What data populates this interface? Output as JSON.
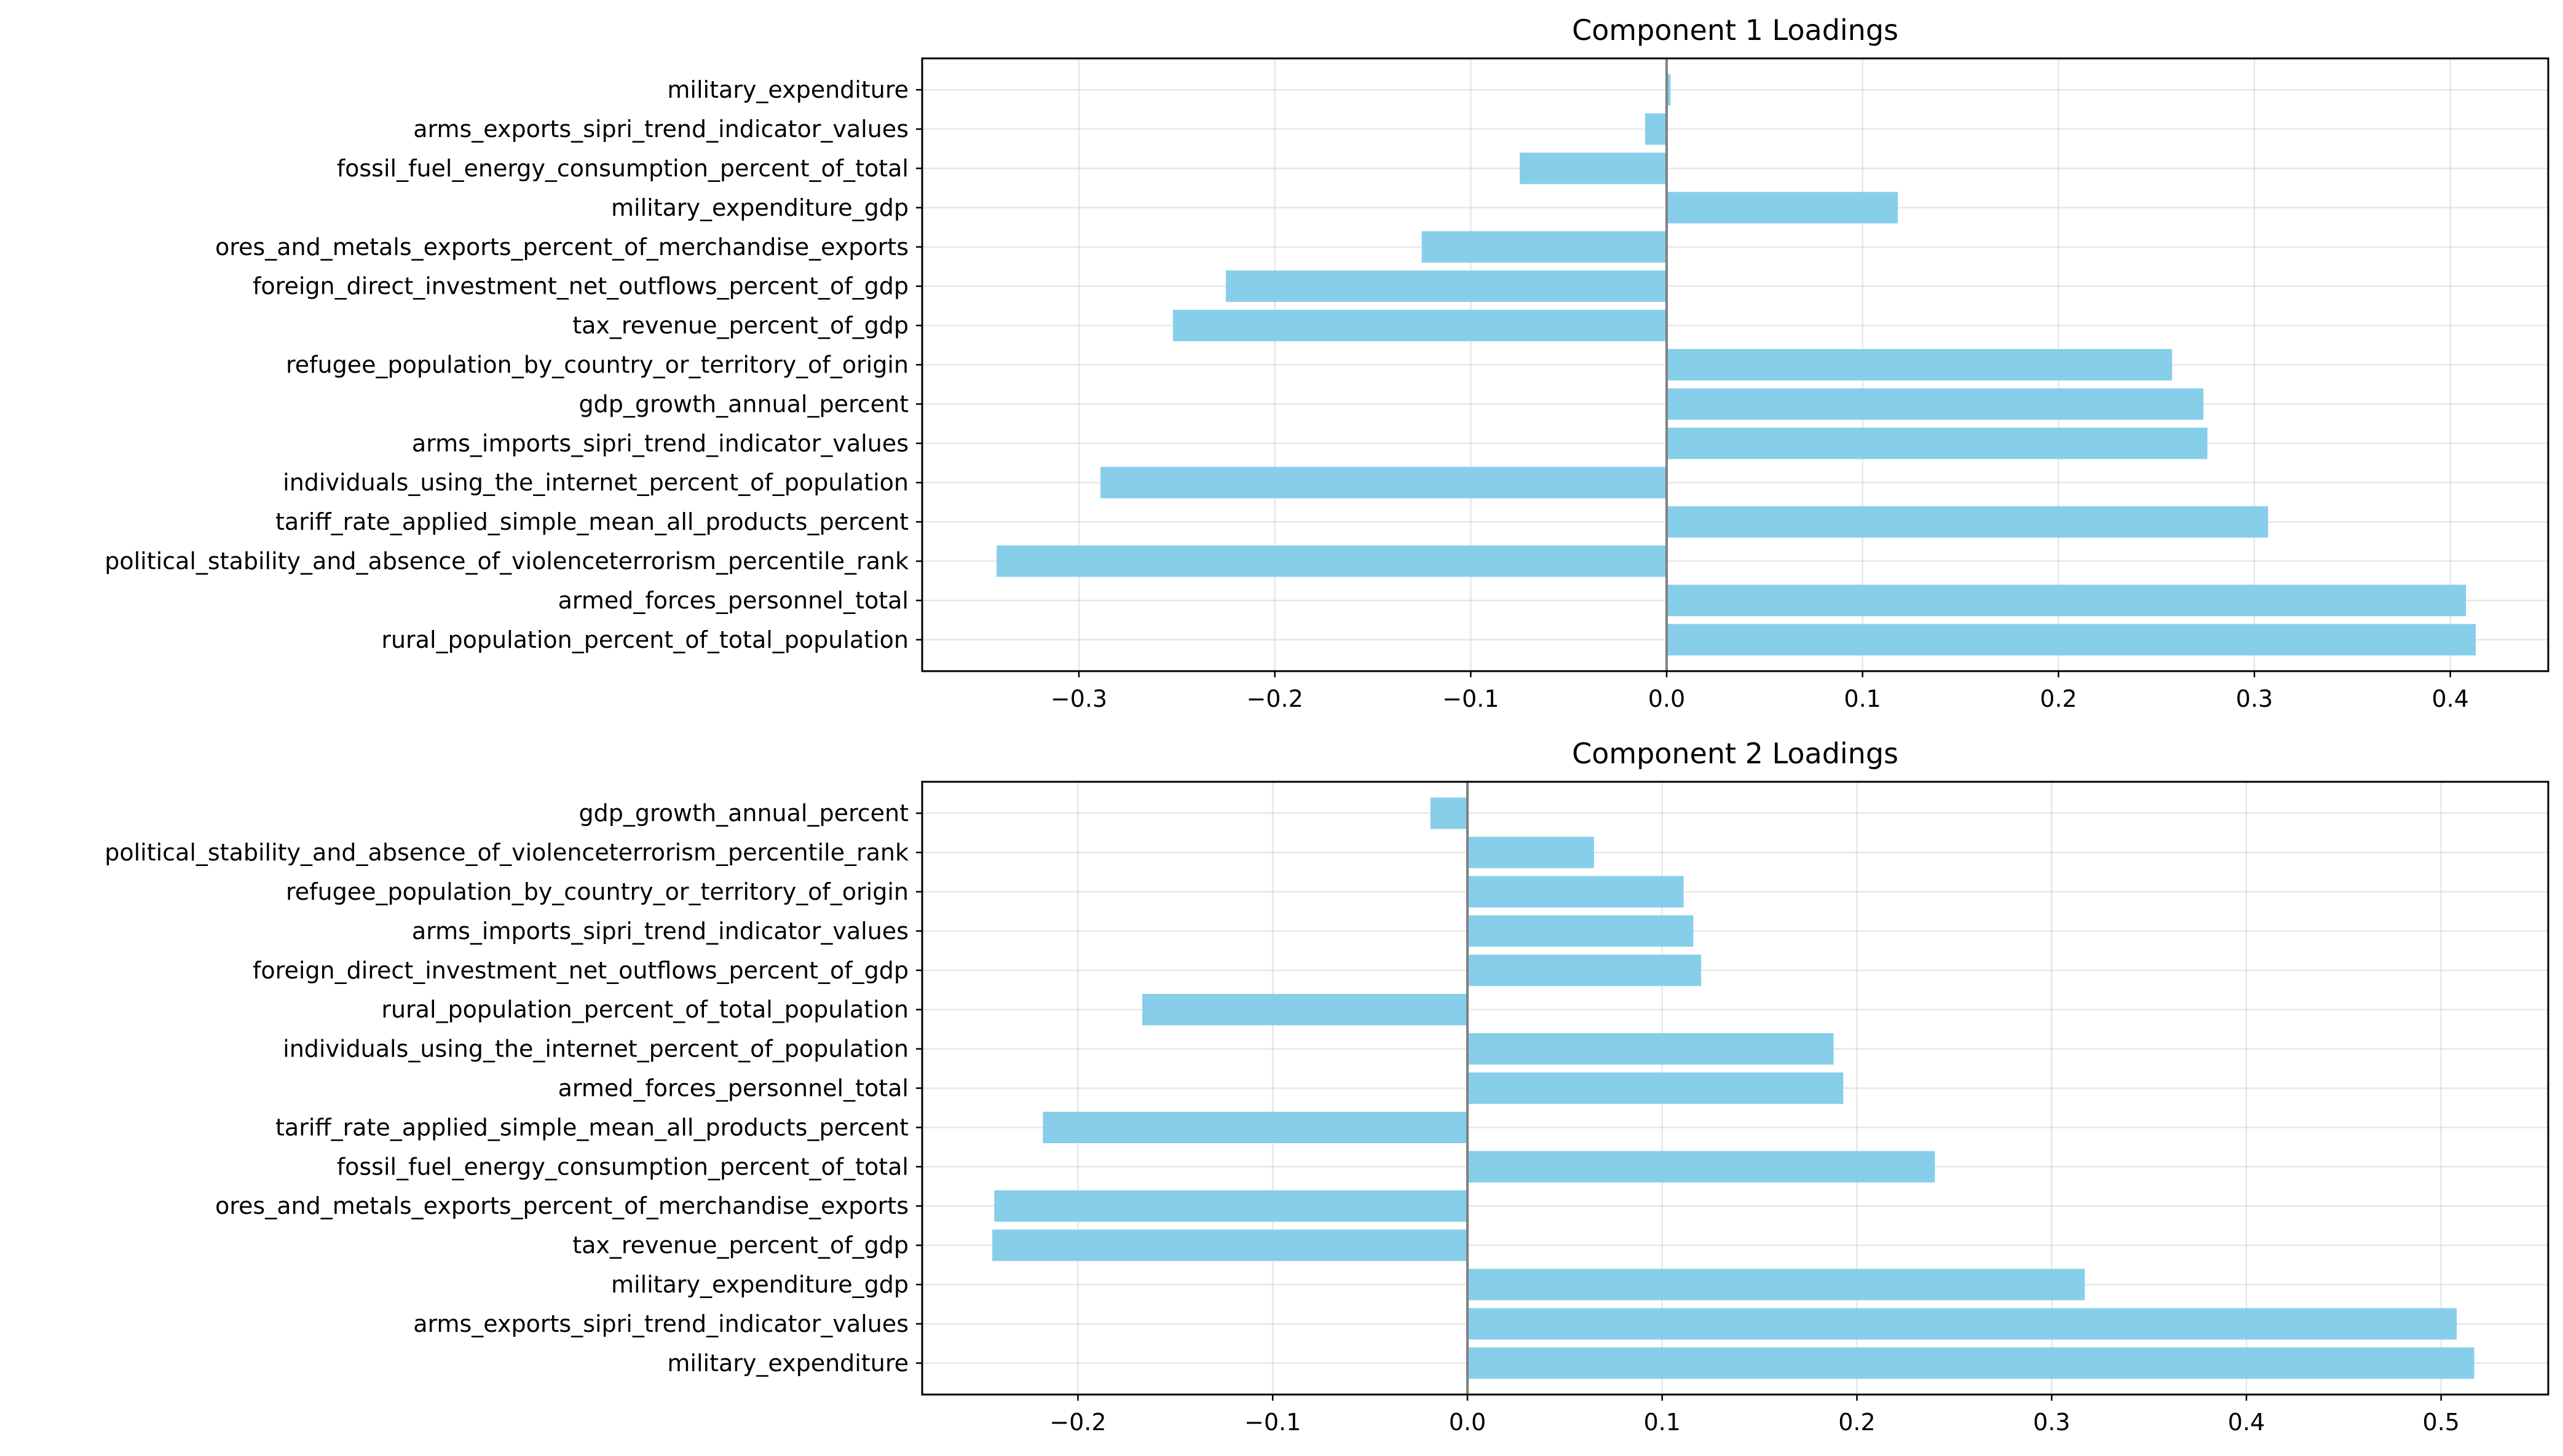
{
  "chart_data": [
    {
      "type": "bar",
      "orientation": "horizontal",
      "title": "Component 1 Loadings",
      "xlabel": "",
      "ylabel": "",
      "xlim": [
        -0.38,
        0.45
      ],
      "xticks": [
        -0.3,
        -0.2,
        -0.1,
        0.0,
        0.1,
        0.2,
        0.3,
        0.4
      ],
      "xtick_labels": [
        "−0.3",
        "−0.2",
        "−0.1",
        "0.0",
        "0.1",
        "0.2",
        "0.3",
        "0.4"
      ],
      "grid": true,
      "bar_color": "#87ceeb",
      "zero_line_color": "#808080",
      "categories": [
        "military_expenditure",
        "arms_exports_sipri_trend_indicator_values",
        "fossil_fuel_energy_consumption_percent_of_total",
        "military_expenditure_gdp",
        "ores_and_metals_exports_percent_of_merchandise_exports",
        "foreign_direct_investment_net_outflows_percent_of_gdp",
        "tax_revenue_percent_of_gdp",
        "refugee_population_by_country_or_territory_of_origin",
        "gdp_growth_annual_percent",
        "arms_imports_sipri_trend_indicator_values",
        "individuals_using_the_internet_percent_of_population",
        "tariff_rate_applied_simple_mean_all_products_percent",
        "political_stability_and_absence_of_violenceterrorism_percentile_rank",
        "armed_forces_personnel_total",
        "rural_population_percent_of_total_population"
      ],
      "values": [
        0.002,
        -0.011,
        -0.075,
        0.118,
        -0.125,
        -0.225,
        -0.252,
        0.258,
        0.274,
        0.276,
        -0.289,
        0.307,
        -0.342,
        0.408,
        0.413
      ]
    },
    {
      "type": "bar",
      "orientation": "horizontal",
      "title": "Component 2 Loadings",
      "xlabel": "",
      "ylabel": "",
      "xlim": [
        -0.28,
        0.555
      ],
      "xticks": [
        -0.2,
        -0.1,
        0.0,
        0.1,
        0.2,
        0.3,
        0.4,
        0.5
      ],
      "xtick_labels": [
        "−0.2",
        "−0.1",
        "0.0",
        "0.1",
        "0.2",
        "0.3",
        "0.4",
        "0.5"
      ],
      "grid": true,
      "bar_color": "#87ceeb",
      "zero_line_color": "#808080",
      "categories": [
        "gdp_growth_annual_percent",
        "political_stability_and_absence_of_violenceterrorism_percentile_rank",
        "refugee_population_by_country_or_territory_of_origin",
        "arms_imports_sipri_trend_indicator_values",
        "foreign_direct_investment_net_outflows_percent_of_gdp",
        "rural_population_percent_of_total_population",
        "individuals_using_the_internet_percent_of_population",
        "armed_forces_personnel_total",
        "tariff_rate_applied_simple_mean_all_products_percent",
        "fossil_fuel_energy_consumption_percent_of_total",
        "ores_and_metals_exports_percent_of_merchandise_exports",
        "tax_revenue_percent_of_gdp",
        "military_expenditure_gdp",
        "arms_exports_sipri_trend_indicator_values",
        "military_expenditure"
      ],
      "values": [
        -0.019,
        0.065,
        0.111,
        0.116,
        0.12,
        -0.167,
        0.188,
        0.193,
        -0.218,
        0.24,
        -0.243,
        -0.244,
        0.317,
        0.508,
        0.517
      ]
    }
  ]
}
